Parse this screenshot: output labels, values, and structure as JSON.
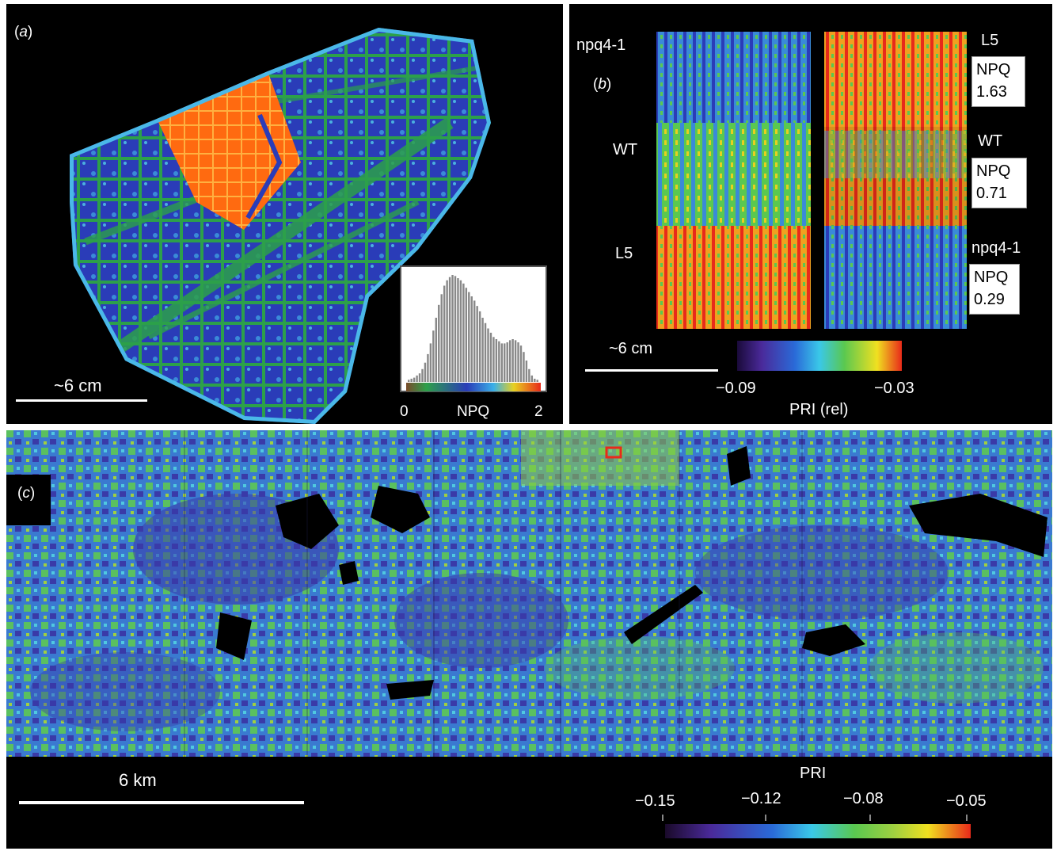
{
  "panel_a": {
    "label_open": "(",
    "label_letter": "a",
    "label_close": ")",
    "scale_text": "~6 cm",
    "inset": {
      "axis_min": "0",
      "axis_label": "NPQ",
      "axis_max": "2",
      "histogram": [
        2,
        3,
        4,
        6,
        8,
        12,
        18,
        26,
        36,
        48,
        60,
        72,
        82,
        90,
        95,
        98,
        100,
        99,
        97,
        95,
        92,
        88,
        84,
        80,
        76,
        71,
        66,
        60,
        55,
        50,
        46,
        42,
        40,
        38,
        36,
        36,
        37,
        39,
        40,
        39,
        37,
        34,
        28,
        20,
        12,
        6,
        3,
        2
      ]
    }
  },
  "panel_b": {
    "label_open": "(",
    "label_letter": "b",
    "label_close": ")",
    "left_labels": [
      "npq4-1",
      "WT",
      "L5"
    ],
    "right_labels": [
      "L5",
      "WT",
      "npq4-1"
    ],
    "npq_label": "NPQ",
    "npq_values": [
      "1.63",
      "0.71",
      "0.29"
    ],
    "scale_text": "~6 cm",
    "colorbar_min": "−0.09",
    "colorbar_max": "−0.03",
    "colorbar_label": "PRI (rel)"
  },
  "panel_c": {
    "label_open": "(",
    "label_letter": "c",
    "label_close": ")",
    "scale_text": "6 km",
    "colorbar_label": "PRI",
    "colorbar_ticks": [
      "−0.15",
      "−0.12",
      "−0.08",
      "−0.05"
    ]
  },
  "colors": {
    "background": "#000000",
    "npq_low": "#2ca04a",
    "npq_mid": "#2a3cb8",
    "npq_high": "#ff6a10",
    "pri_low": "#2a1a7a",
    "pri_high": "#e82a1a"
  }
}
